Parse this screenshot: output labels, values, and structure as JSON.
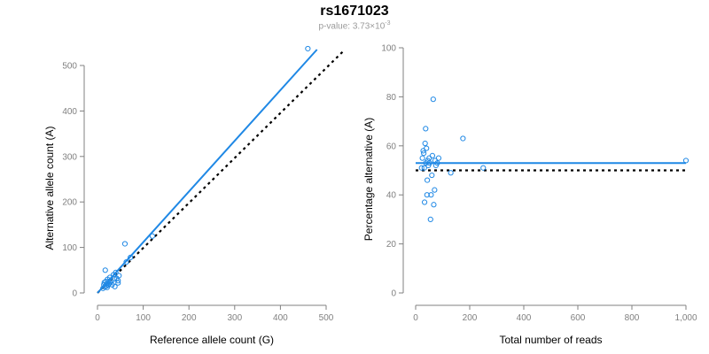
{
  "page": {
    "title": "rs1671023",
    "subtitle_prefix": "p-value: 3.73×10",
    "subtitle_exponent": "-3"
  },
  "colors": {
    "accent": "#1f88e5",
    "axis": "#808080",
    "reference_line": "#000000"
  },
  "chart_data": [
    {
      "type": "scatter",
      "xlabel": "Reference allele count (G)",
      "ylabel": "Alternative allele count (A)",
      "xlim": [
        0,
        500
      ],
      "ylim": [
        0,
        500
      ],
      "x_ticks": [
        0,
        100,
        200,
        300,
        400,
        500
      ],
      "x_tick_labels": [
        "0",
        "100",
        "200",
        "300",
        "400",
        "500"
      ],
      "y_ticks": [
        0,
        100,
        200,
        300,
        400,
        500
      ],
      "y_tick_labels": [
        "0",
        "100",
        "200",
        "300",
        "400",
        "500"
      ],
      "grid": false,
      "points": [
        [
          12,
          10
        ],
        [
          14,
          18
        ],
        [
          15,
          23
        ],
        [
          16,
          13
        ],
        [
          17,
          50
        ],
        [
          18,
          25
        ],
        [
          19,
          15
        ],
        [
          20,
          20
        ],
        [
          21,
          12
        ],
        [
          22,
          30
        ],
        [
          23,
          17
        ],
        [
          24,
          25
        ],
        [
          25,
          20
        ],
        [
          27,
          34
        ],
        [
          28,
          22
        ],
        [
          30,
          26
        ],
        [
          32,
          18
        ],
        [
          35,
          40
        ],
        [
          37,
          31
        ],
        [
          38,
          14
        ],
        [
          40,
          45
        ],
        [
          42,
          32
        ],
        [
          45,
          27
        ],
        [
          47,
          38
        ],
        [
          45,
          22
        ],
        [
          60,
          108
        ],
        [
          63,
          68
        ],
        [
          72,
          78
        ],
        [
          120,
          125
        ],
        [
          460,
          537
        ]
      ],
      "fit_line": {
        "name": "",
        "x": [
          0,
          480
        ],
        "y": [
          0,
          535
        ]
      },
      "reference_line": {
        "name": "",
        "x": [
          0,
          538
        ],
        "y": [
          0,
          532
        ],
        "dashed": true
      }
    },
    {
      "type": "scatter",
      "xlabel": "Total number of reads",
      "ylabel": "Percentage alternative (A)",
      "xlim": [
        0,
        1000
      ],
      "ylim": [
        0,
        100
      ],
      "x_ticks": [
        0,
        200,
        400,
        600,
        800,
        1000
      ],
      "x_tick_labels": [
        "0",
        "200",
        "400",
        "600",
        "800",
        "1,000"
      ],
      "y_ticks": [
        0,
        20,
        40,
        60,
        80,
        100
      ],
      "y_tick_labels": [
        "0",
        "20",
        "40",
        "60",
        "80",
        "100"
      ],
      "grid": false,
      "points": [
        [
          22,
          51
        ],
        [
          25,
          55
        ],
        [
          28,
          58
        ],
        [
          30,
          57
        ],
        [
          32,
          51
        ],
        [
          33,
          37
        ],
        [
          35,
          61
        ],
        [
          37,
          67
        ],
        [
          38,
          53
        ],
        [
          40,
          59
        ],
        [
          42,
          40
        ],
        [
          43,
          46
        ],
        [
          45,
          54
        ],
        [
          47,
          52
        ],
        [
          50,
          55
        ],
        [
          52,
          53
        ],
        [
          55,
          30
        ],
        [
          57,
          40
        ],
        [
          60,
          48
        ],
        [
          62,
          56
        ],
        [
          65,
          79
        ],
        [
          67,
          36
        ],
        [
          70,
          42
        ],
        [
          72,
          54
        ],
        [
          75,
          52
        ],
        [
          80,
          53
        ],
        [
          85,
          55
        ],
        [
          130,
          49
        ],
        [
          175,
          63
        ],
        [
          250,
          51
        ],
        [
          1000,
          54
        ]
      ],
      "fit_line": {
        "name": "",
        "x": [
          0,
          1000
        ],
        "y": [
          53,
          53
        ]
      },
      "reference_line": {
        "name": "",
        "x": [
          0,
          1000
        ],
        "y": [
          50,
          50
        ],
        "dashed": true
      }
    }
  ]
}
